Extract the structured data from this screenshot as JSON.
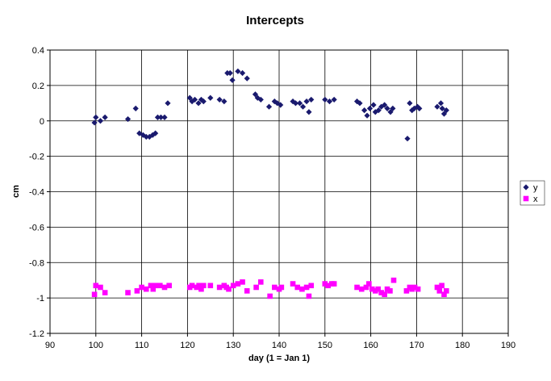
{
  "chart_data": {
    "type": "scatter",
    "title": "Intercepts",
    "xlabel": "day (1 = Jan 1)",
    "ylabel": "cm",
    "xlim": [
      90,
      190
    ],
    "ylim": [
      -1.2,
      0.4
    ],
    "xticks": [
      "90",
      "100",
      "110",
      "120",
      "130",
      "140",
      "150",
      "160",
      "170",
      "180",
      "190"
    ],
    "yticks": [
      "0.4",
      "0.2",
      "0",
      "-0.2",
      "-0.4",
      "-0.6",
      "-0.8",
      "-1",
      "-1.2"
    ],
    "grid": true,
    "legend_position": "right",
    "series": [
      {
        "name": "y",
        "marker": "diamond",
        "color": "#1a1a6e",
        "points": [
          [
            99.7,
            -0.01
          ],
          [
            100,
            0.02
          ],
          [
            101,
            0
          ],
          [
            102,
            0.02
          ],
          [
            107,
            0.01
          ],
          [
            108.7,
            0.07
          ],
          [
            109.5,
            -0.07
          ],
          [
            110.3,
            -0.08
          ],
          [
            111,
            -0.09
          ],
          [
            111.7,
            -0.09
          ],
          [
            112.4,
            -0.08
          ],
          [
            113,
            -0.07
          ],
          [
            113.5,
            0.02
          ],
          [
            114.2,
            0.02
          ],
          [
            115,
            0.02
          ],
          [
            115.7,
            0.1
          ],
          [
            120.5,
            0.13
          ],
          [
            121,
            0.11
          ],
          [
            121.6,
            0.12
          ],
          [
            122.4,
            0.1
          ],
          [
            123,
            0.12
          ],
          [
            123.5,
            0.11
          ],
          [
            125,
            0.13
          ],
          [
            127,
            0.12
          ],
          [
            128,
            0.11
          ],
          [
            128.7,
            0.27
          ],
          [
            129.3,
            0.27
          ],
          [
            129.8,
            0.23
          ],
          [
            131,
            0.28
          ],
          [
            132,
            0.27
          ],
          [
            133,
            0.24
          ],
          [
            134.8,
            0.15
          ],
          [
            135.3,
            0.13
          ],
          [
            136,
            0.12
          ],
          [
            137.8,
            0.08
          ],
          [
            139,
            0.11
          ],
          [
            139.6,
            0.1
          ],
          [
            140.3,
            0.09
          ],
          [
            143,
            0.11
          ],
          [
            143.6,
            0.1
          ],
          [
            144.5,
            0.1
          ],
          [
            145.2,
            0.08
          ],
          [
            146,
            0.11
          ],
          [
            146.5,
            0.05
          ],
          [
            147,
            0.12
          ],
          [
            150,
            0.12
          ],
          [
            151,
            0.11
          ],
          [
            152,
            0.12
          ],
          [
            157,
            0.11
          ],
          [
            157.6,
            0.1
          ],
          [
            158.6,
            0.06
          ],
          [
            159.2,
            0.03
          ],
          [
            159.8,
            0.07
          ],
          [
            160.6,
            0.09
          ],
          [
            161,
            0.05
          ],
          [
            161.7,
            0.06
          ],
          [
            162.3,
            0.08
          ],
          [
            163,
            0.09
          ],
          [
            163.6,
            0.07
          ],
          [
            164.3,
            0.05
          ],
          [
            164.8,
            0.07
          ],
          [
            168,
            -0.1
          ],
          [
            168.5,
            0.1
          ],
          [
            169,
            0.06
          ],
          [
            169.5,
            0.07
          ],
          [
            170.2,
            0.08
          ],
          [
            170.6,
            0.07
          ],
          [
            174.5,
            0.08
          ],
          [
            175.3,
            0.1
          ],
          [
            175.6,
            0.07
          ],
          [
            176,
            0.04
          ],
          [
            176.5,
            0.06
          ]
        ]
      },
      {
        "name": "x",
        "marker": "square",
        "color": "#ff00ff",
        "points": [
          [
            99.7,
            -0.98
          ],
          [
            100,
            -0.93
          ],
          [
            101,
            -0.94
          ],
          [
            102,
            -0.97
          ],
          [
            107,
            -0.97
          ],
          [
            109,
            -0.96
          ],
          [
            110,
            -0.94
          ],
          [
            111,
            -0.95
          ],
          [
            112,
            -0.93
          ],
          [
            112.5,
            -0.95
          ],
          [
            113,
            -0.93
          ],
          [
            114,
            -0.93
          ],
          [
            115,
            -0.94
          ],
          [
            116,
            -0.93
          ],
          [
            120.5,
            -0.94
          ],
          [
            121,
            -0.93
          ],
          [
            122,
            -0.94
          ],
          [
            122.5,
            -0.93
          ],
          [
            123,
            -0.95
          ],
          [
            123.5,
            -0.93
          ],
          [
            125,
            -0.93
          ],
          [
            127,
            -0.94
          ],
          [
            128,
            -0.93
          ],
          [
            128.5,
            -0.94
          ],
          [
            129,
            -0.95
          ],
          [
            130,
            -0.93
          ],
          [
            131,
            -0.92
          ],
          [
            132,
            -0.91
          ],
          [
            133,
            -0.96
          ],
          [
            135,
            -0.94
          ],
          [
            136,
            -0.91
          ],
          [
            138,
            -0.99
          ],
          [
            139,
            -0.94
          ],
          [
            140,
            -0.95
          ],
          [
            140.5,
            -0.94
          ],
          [
            143,
            -0.92
          ],
          [
            144,
            -0.94
          ],
          [
            145,
            -0.95
          ],
          [
            146,
            -0.94
          ],
          [
            146.5,
            -0.99
          ],
          [
            147,
            -0.93
          ],
          [
            150,
            -0.92
          ],
          [
            150.7,
            -0.93
          ],
          [
            151.5,
            -0.92
          ],
          [
            152,
            -0.92
          ],
          [
            157,
            -0.94
          ],
          [
            158,
            -0.95
          ],
          [
            159,
            -0.94
          ],
          [
            159.6,
            -0.92
          ],
          [
            160.3,
            -0.95
          ],
          [
            161,
            -0.96
          ],
          [
            161.6,
            -0.95
          ],
          [
            162.3,
            -0.97
          ],
          [
            163,
            -0.98
          ],
          [
            163.6,
            -0.95
          ],
          [
            164.2,
            -0.96
          ],
          [
            165,
            -0.9
          ],
          [
            167.8,
            -0.96
          ],
          [
            168.5,
            -0.94
          ],
          [
            169,
            -0.95
          ],
          [
            169.6,
            -0.94
          ],
          [
            170.3,
            -0.95
          ],
          [
            174.5,
            -0.94
          ],
          [
            175,
            -0.96
          ],
          [
            175.5,
            -0.93
          ],
          [
            176,
            -0.98
          ],
          [
            176.5,
            -0.96
          ]
        ]
      }
    ]
  }
}
